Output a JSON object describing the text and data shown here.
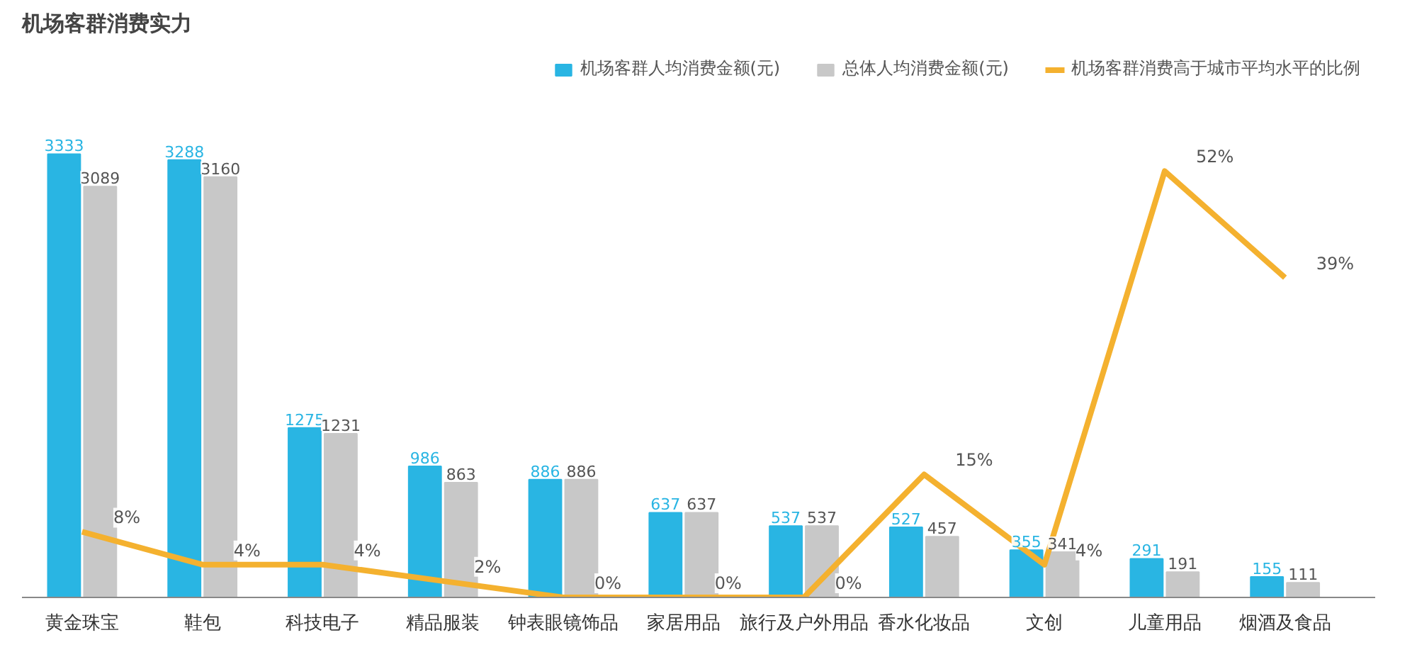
{
  "chart_data": {
    "type": "bar",
    "title": "机场客群消费实力",
    "categories": [
      "黄金珠宝",
      "鞋包",
      "科技电子",
      "精品服装",
      "钟表眼镜饰品",
      "家居用品",
      "旅行及户外用品",
      "香水化妆品",
      "文创",
      "儿童用品",
      "烟酒及食品"
    ],
    "series": [
      {
        "name": "机场客群人均消费金额(元)",
        "color": "#29b5e3",
        "values": [
          3333,
          3288,
          1275,
          986,
          886,
          637,
          537,
          527,
          355,
          291,
          155
        ]
      },
      {
        "name": "总体人均消费金额(元)",
        "color": "#c8c8c8",
        "values": [
          3089,
          3160,
          1231,
          863,
          886,
          637,
          537,
          457,
          341,
          191,
          111
        ]
      },
      {
        "name": "机场客群消费高于城市平均水平的比例",
        "color": "#f4b12f",
        "type": "line",
        "axis": "y2",
        "values": [
          8,
          4,
          4,
          2,
          0,
          0,
          0,
          15,
          4,
          52,
          39
        ],
        "value_labels": [
          "8%",
          "4%",
          "4%",
          "2%",
          "0%",
          "0%",
          "0%",
          "15%",
          "4%",
          "52%",
          "39%"
        ]
      }
    ],
    "data_labels": true,
    "legend": "top right",
    "tick_labels": "x",
    "grid": false,
    "marker": "none",
    "line_style": "solid"
  }
}
